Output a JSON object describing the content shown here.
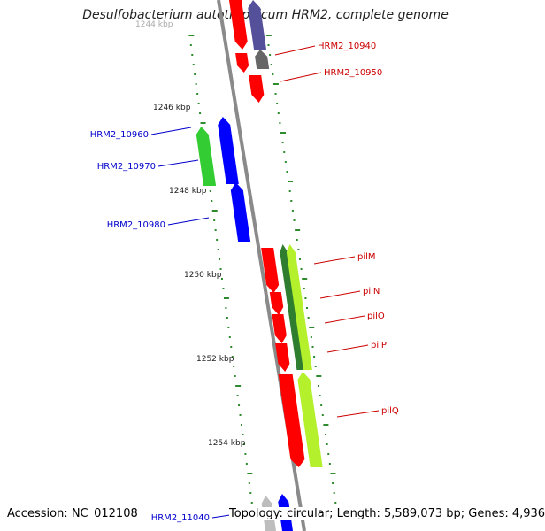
{
  "title": "Desulfobacterium autotrophicum HRM2, complete genome",
  "footer": {
    "accession": "Accession: NC_012108",
    "summary": "Topology: circular; Length: 5,589,073 bp; Genes: 4,936"
  },
  "colors": {
    "backbone": "#8a8a8a",
    "forward_strand_label": "#cc0000",
    "reverse_strand_label": "#0000cc",
    "tick": "#2e8b2e",
    "gene_red": "#ff0000",
    "gene_blue": "#0000ff",
    "gene_green": "#33cc33",
    "gene_darkgreen": "#2f7d2f",
    "gene_lime": "#b4f02c",
    "gene_navy": "#55509a",
    "gene_gray": "#666666",
    "gene_lightgray": "#bdbdbd"
  },
  "scale_labels": [
    "1244 kbp",
    "1246 kbp",
    "1248 kbp",
    "1250 kbp",
    "1252 kbp",
    "1254 kbp"
  ],
  "gene_labels": [
    {
      "text": "HRM2_10940",
      "strand": "forward"
    },
    {
      "text": "HRM2_10950",
      "strand": "forward"
    },
    {
      "text": "HRM2_10960",
      "strand": "reverse"
    },
    {
      "text": "HRM2_10970",
      "strand": "reverse"
    },
    {
      "text": "HRM2_10980",
      "strand": "reverse"
    },
    {
      "text": "pilM",
      "strand": "forward"
    },
    {
      "text": "pilN",
      "strand": "forward"
    },
    {
      "text": "pilO",
      "strand": "forward"
    },
    {
      "text": "pilP",
      "strand": "forward"
    },
    {
      "text": "pilQ",
      "strand": "forward"
    },
    {
      "text": "HRM2_11040",
      "strand": "reverse"
    }
  ]
}
